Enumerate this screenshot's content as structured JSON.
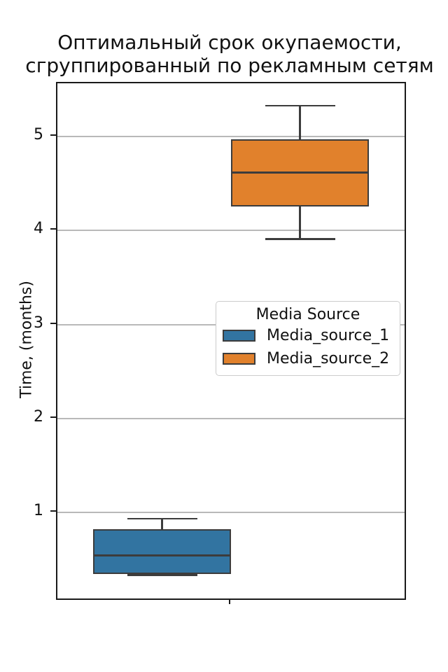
{
  "figure": {
    "title_line1": "Оптимальный срок окупаемости,",
    "title_line2": "сгруппированный по рекламным сетям"
  },
  "axes": {
    "ylabel": "Time, (months)",
    "xlabel": ""
  },
  "legend": {
    "title": "Media Source",
    "entries": [
      {
        "label": "Media_source_1",
        "color": "#3274a1"
      },
      {
        "label": "Media_source_2",
        "color": "#e1812c"
      }
    ]
  },
  "chart_data": {
    "type": "box",
    "title": "Оптимальный срок окупаемости, сгруппированный по рекламным сетям",
    "xlabel": "",
    "ylabel": "Time, (months)",
    "categories": [
      ""
    ],
    "series": [
      {
        "name": "Media_source_1",
        "color": "#3274a1",
        "whisker_low": 0.33,
        "q1": 0.34,
        "median": 0.54,
        "q3": 0.82,
        "whisker_high": 0.93
      },
      {
        "name": "Media_source_2",
        "color": "#e1812c",
        "whisker_low": 3.91,
        "q1": 4.26,
        "median": 4.62,
        "q3": 4.97,
        "whisker_high": 5.33
      }
    ],
    "yticks": [
      1,
      2,
      3,
      4,
      5
    ],
    "ylim": [
      0.08,
      5.57
    ],
    "grid": "horizontal",
    "legend_title": "Media Source",
    "legend_position": "center-right",
    "box_edge_color": "#3c3c3c",
    "grid_color": "#b9b9b9"
  }
}
